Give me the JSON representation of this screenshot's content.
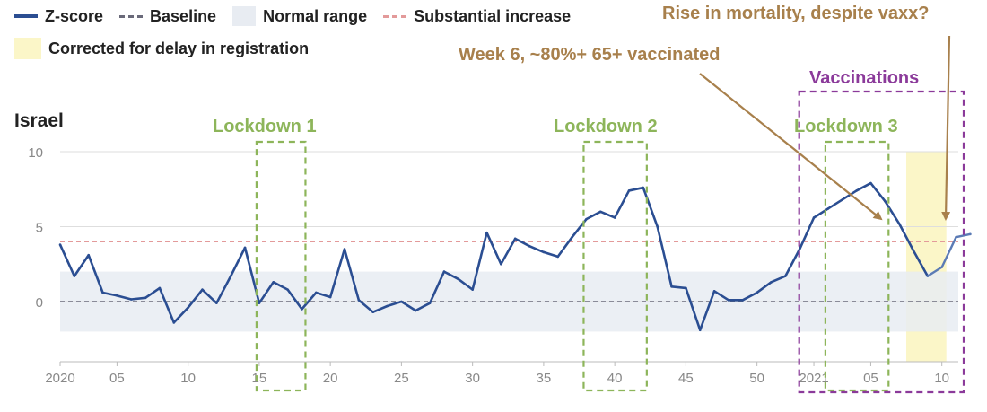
{
  "legend": {
    "zscore": "Z-score",
    "baseline": "Baseline",
    "normal_range": "Normal range",
    "substantial_increase": "Substantial increase",
    "corrected": "Corrected for delay in registration"
  },
  "region": "Israel",
  "annotations": {
    "rise": "Rise in mortality, despite vaxx?",
    "week6": "Week 6, ~80%+ 65+ vaccinated",
    "vaccinations": "Vaccinations",
    "lockdown1": "Lockdown 1",
    "lockdown2": "Lockdown 2",
    "lockdown3": "Lockdown 3"
  },
  "colors": {
    "line": "#2b4e92",
    "baseline": "#6a6a7a",
    "normal_range": "#e8ecf2",
    "substantial": "#e39a9a",
    "corrected": "#fbf6c8",
    "lockdown": "#8db55a",
    "vaccination": "#8b3a9a",
    "arrow": "#a8804c",
    "grid": "#dedede",
    "tick": "#888888"
  },
  "chart_data": {
    "type": "line",
    "x_ticks": [
      "2020",
      "05",
      "10",
      "15",
      "20",
      "25",
      "30",
      "35",
      "40",
      "45",
      "50",
      "2021",
      "05",
      "10"
    ],
    "y_ticks": [
      0,
      5,
      10
    ],
    "ylim": [
      -4,
      10
    ],
    "week_range": [
      1,
      63
    ],
    "normal_range": [
      -2,
      2
    ],
    "baseline": 0,
    "substantial_increase": 4,
    "corrected_weeks": [
      61,
      63
    ],
    "lockdown_weeks": [
      [
        15,
        18
      ],
      [
        38,
        42
      ],
      [
        55,
        59
      ]
    ],
    "vaccination_weeks": [
      53,
      64
    ],
    "series": [
      {
        "values": [
          3.8,
          1.7,
          3.1,
          0.6,
          0.4,
          0.15,
          0.25,
          0.9,
          -1.4,
          -0.4,
          0.8,
          -0.1,
          1.7,
          3.6,
          -0.1,
          1.3,
          0.8,
          -0.5,
          0.6,
          0.3,
          3.5,
          0.1,
          -0.7,
          -0.3,
          0.0,
          -0.6,
          -0.1,
          2.0,
          1.5,
          0.8,
          4.6,
          2.5,
          4.2,
          3.7,
          3.3,
          3.0,
          4.3,
          5.5,
          6.0,
          5.6,
          7.4,
          7.6,
          5.0,
          1.0,
          0.9,
          -1.9,
          0.7,
          0.1,
          0.1,
          0.6,
          1.3,
          1.7,
          3.5,
          5.6,
          6.2,
          6.8,
          7.4,
          7.9,
          6.7,
          5.2,
          3.4,
          1.7
        ]
      },
      {
        "values": [
          1.7,
          2.3,
          4.3,
          4.5
        ]
      }
    ]
  }
}
